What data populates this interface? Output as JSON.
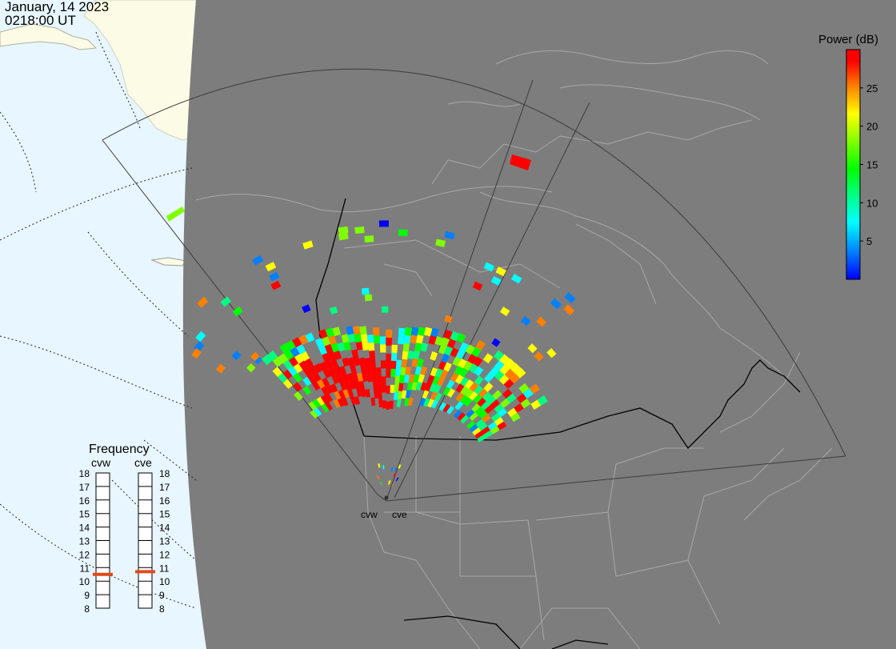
{
  "header": {
    "date": "January, 14 2023",
    "time": "0218:00 UT"
  },
  "colorbar": {
    "title": "Power (dB)",
    "ticks": [
      {
        "value": 25,
        "label": "25"
      },
      {
        "value": 20,
        "label": "20"
      },
      {
        "value": 15,
        "label": "15"
      },
      {
        "value": 10,
        "label": "10"
      },
      {
        "value": 5,
        "label": "5"
      }
    ],
    "range": [
      0,
      30
    ],
    "colors": [
      "#0000ff",
      "#0080ff",
      "#00ffff",
      "#00ff80",
      "#00ff00",
      "#80ff00",
      "#ffff00",
      "#ff8000",
      "#ff0000"
    ]
  },
  "frequency": {
    "title": "Frequency",
    "scale": [
      "18",
      "17",
      "16",
      "15",
      "14",
      "13",
      "12",
      "11",
      "10",
      "9",
      "8"
    ],
    "radars": [
      {
        "name": "cvw",
        "value_mhz": 10.5
      },
      {
        "name": "cve",
        "value_mhz": 10.7
      }
    ],
    "marker_color": "#e04a1a"
  },
  "stations": [
    {
      "name": "cvw"
    },
    {
      "name": "cve"
    }
  ],
  "map": {
    "ocean_color": "#e8f6ff",
    "land_day_color": "#fcfce6",
    "night_color": "#7d7d7d",
    "boundary_color": "#a8a8a8",
    "border_color": "#000000",
    "fov_color": "#444444"
  }
}
